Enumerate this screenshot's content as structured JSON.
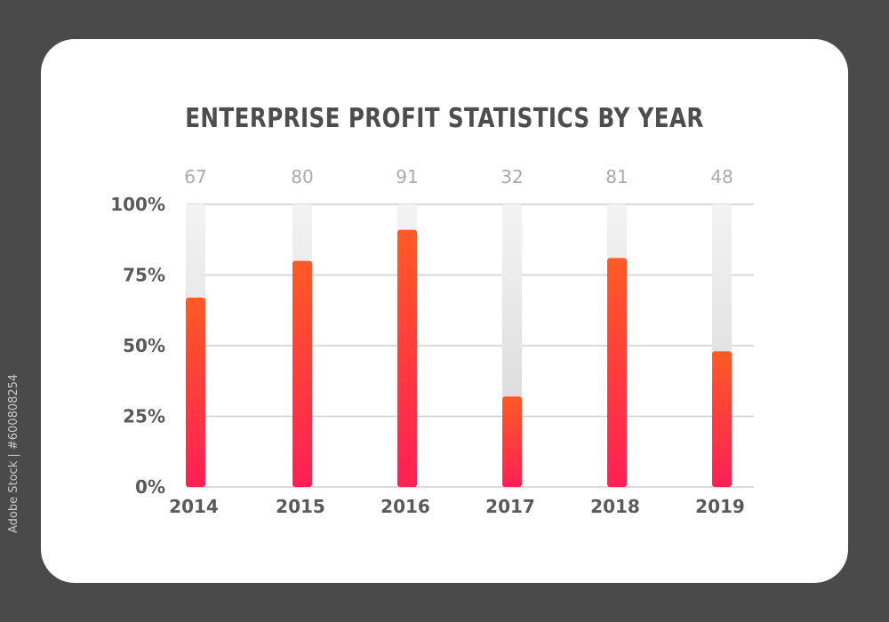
{
  "side_id": "Adobe Stock | #600808254",
  "colors": {
    "background": "#4a4a4a",
    "card": "#ffffff",
    "bar_top": "#ff5a25",
    "bar_bottom": "#ff1f55",
    "track": "#d9d9d9"
  },
  "chart_data": {
    "type": "bar",
    "title": "ENTERPRISE PROFIT STATISTICS BY YEAR",
    "xlabel": "",
    "ylabel": "",
    "categories": [
      "2014",
      "2015",
      "2016",
      "2017",
      "2018",
      "2019"
    ],
    "values": [
      67,
      80,
      91,
      32,
      81,
      48
    ],
    "value_labels": [
      "67",
      "80",
      "91",
      "32",
      "81",
      "48"
    ],
    "y_ticks": [
      "0%",
      "25%",
      "50%",
      "75%",
      "100%"
    ],
    "ylim": [
      0,
      100
    ],
    "grid": true,
    "legend": "none"
  }
}
